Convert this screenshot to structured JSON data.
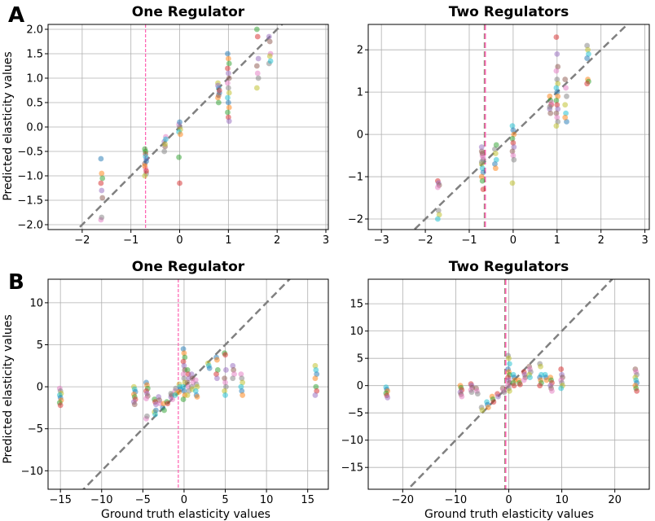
{
  "figure": {
    "panel_letters": [
      "A",
      "B"
    ],
    "ylabel": "Predicted elasticity values",
    "xlabel": "Ground truth elasticity values"
  },
  "colors": {
    "diagonal": "#808080",
    "vline_pink": "#ff5fb0",
    "vline_green": "#3cb44b",
    "points": [
      "#1f77b4",
      "#ff7f0e",
      "#2ca02c",
      "#d62728",
      "#9467bd",
      "#8c564b",
      "#e377c2",
      "#7f7f7f",
      "#bcbd22",
      "#17becf"
    ]
  },
  "chart_data": [
    {
      "id": "A1",
      "type": "scatter",
      "title": "One Regulator",
      "xlim": [
        -2.7,
        3.05
      ],
      "ylim": [
        -2.1,
        2.1
      ],
      "xticks": [
        -2,
        -1,
        0,
        1,
        2,
        3
      ],
      "yticks": [
        -2.0,
        -1.5,
        -1.0,
        -0.5,
        0.0,
        0.5,
        1.0,
        1.5,
        2.0
      ],
      "ytick_decimals": 1,
      "diagonal": true,
      "vlines": [
        {
          "x": -0.7,
          "color": "pink"
        }
      ],
      "x_groups": [
        {
          "x": -1.6,
          "y": [
            -0.65,
            -0.95,
            -1.05,
            -1.15,
            -1.3,
            -1.45,
            -1.9,
            -1.85
          ]
        },
        {
          "x": -0.7,
          "y": [
            -0.45,
            -0.55,
            -0.65,
            -0.75,
            -0.85,
            -0.95,
            -1.0,
            -0.6,
            -0.7,
            -0.8,
            -0.5,
            -0.9
          ]
        },
        {
          "x": -0.3,
          "y": [
            -0.3,
            -0.4,
            -0.2,
            -0.5,
            -0.35,
            -0.25
          ]
        },
        {
          "x": 0.0,
          "y": [
            0.05,
            0.0,
            -0.05,
            -0.1,
            0.1,
            -0.15,
            -0.62,
            -1.15
          ]
        },
        {
          "x": 0.8,
          "y": [
            0.9,
            0.8,
            0.7,
            0.6,
            0.5,
            0.75,
            0.85,
            0.65
          ]
        },
        {
          "x": 1.0,
          "y": [
            1.5,
            1.4,
            1.3,
            1.2,
            1.1,
            1.0,
            0.9,
            0.8,
            0.7,
            0.6,
            0.5,
            0.4,
            0.3,
            0.2,
            0.12
          ]
        },
        {
          "x": 1.6,
          "y": [
            2.0,
            1.85,
            1.4,
            1.25,
            1.1,
            1.0,
            0.8
          ]
        },
        {
          "x": 1.85,
          "y": [
            1.85,
            1.75,
            1.5,
            1.3,
            1.45,
            1.35
          ]
        }
      ]
    },
    {
      "id": "A2",
      "type": "scatter",
      "title": "Two Regulators",
      "xlim": [
        -3.3,
        3.1
      ],
      "ylim": [
        -2.25,
        2.6
      ],
      "xticks": [
        -3,
        -2,
        -1,
        0,
        1,
        2,
        3
      ],
      "yticks": [
        -2,
        -1,
        0,
        1,
        2
      ],
      "ytick_decimals": 0,
      "diagonal": true,
      "vlines": [
        {
          "x": -0.65,
          "color": "green",
          "dash": "dashed"
        },
        {
          "x": -0.65,
          "color": "pink",
          "dash": "dashed"
        }
      ],
      "x_groups": [
        {
          "x": -1.7,
          "y": [
            -1.1,
            -1.15,
            -1.2,
            -1.25,
            -1.8,
            -1.9,
            -2.0
          ]
        },
        {
          "x": -0.7,
          "y": [
            -0.4,
            -0.5,
            -0.6,
            -0.7,
            -0.8,
            -0.9,
            -1.0,
            -1.1,
            -1.3,
            -0.3,
            -0.45,
            -0.55,
            -0.65
          ]
        },
        {
          "x": -0.4,
          "y": [
            -0.35,
            -0.45,
            -0.6,
            -0.7,
            -0.8,
            -0.25
          ]
        },
        {
          "x": 0.0,
          "y": [
            0.2,
            0.1,
            0.0,
            -0.1,
            -0.2,
            -0.3,
            -0.4,
            -0.5,
            -0.6,
            -1.15
          ]
        },
        {
          "x": 0.85,
          "y": [
            0.9,
            0.8,
            0.7,
            0.6,
            0.5,
            0.75,
            0.65
          ]
        },
        {
          "x": 1.0,
          "y": [
            2.3,
            1.9,
            1.6,
            1.5,
            1.3,
            1.2,
            1.1,
            1.0,
            0.9,
            0.8,
            0.7,
            0.6,
            0.5,
            0.4,
            0.3,
            0.2
          ]
        },
        {
          "x": 1.2,
          "y": [
            1.3,
            1.1,
            0.9,
            0.7,
            0.5,
            0.3,
            0.4
          ]
        },
        {
          "x": 1.7,
          "y": [
            2.1,
            2.0,
            1.9,
            1.8,
            1.3,
            1.25,
            1.2
          ]
        }
      ]
    },
    {
      "id": "B1",
      "type": "scatter",
      "title": "One Regulator",
      "xlim": [
        -16.5,
        17.5
      ],
      "ylim": [
        -12.2,
        12.8
      ],
      "xticks": [
        -15,
        -10,
        -5,
        0,
        5,
        10,
        15
      ],
      "yticks": [
        -10,
        -5,
        0,
        5,
        10
      ],
      "ytick_decimals": 0,
      "diagonal": true,
      "vlines": [
        {
          "x": -0.7,
          "color": "pink"
        }
      ],
      "x_groups": [
        {
          "x": -15.0,
          "y": [
            -0.2,
            -0.5,
            -0.8,
            -1.0,
            -1.3,
            -1.6,
            -1.9,
            -2.2
          ]
        },
        {
          "x": -6.0,
          "y": [
            0.0,
            -0.3,
            -0.6,
            -0.9,
            -1.2,
            -1.5,
            -1.8,
            -2.1
          ]
        },
        {
          "x": -4.5,
          "y": [
            0.5,
            0.2,
            -0.2,
            -0.5,
            -0.8,
            -1.1,
            -1.4
          ]
        },
        {
          "x": -3.5,
          "y": [
            -1.5,
            -1.8,
            -2.1
          ]
        },
        {
          "x": -3.0,
          "y": [
            -1.2,
            -1.6,
            -2.0
          ]
        },
        {
          "x": -4.5,
          "y": [
            -3.8,
            -3.5
          ]
        },
        {
          "x": -3.5,
          "y": [
            -3.0,
            -3.3,
            -2.8
          ]
        },
        {
          "x": -2.5,
          "y": [
            -2.5,
            -2.0,
            -2.8
          ]
        },
        {
          "x": -2.0,
          "y": [
            -1.8,
            -2.0
          ]
        },
        {
          "x": -1.5,
          "y": [
            -1.2,
            -1.0,
            -1.5,
            -0.8
          ]
        },
        {
          "x": -1.0,
          "y": [
            -0.5,
            -0.2,
            -0.8,
            -1.0
          ]
        },
        {
          "x": -0.5,
          "y": [
            0.3,
            0.0,
            -0.3,
            -0.6
          ]
        },
        {
          "x": 0.0,
          "y": [
            4.5,
            4.0,
            3.5,
            3.0,
            2.5,
            2.0,
            1.5,
            1.0,
            0.5,
            0.0,
            -0.5,
            -1.0,
            -1.5
          ]
        },
        {
          "x": 0.5,
          "y": [
            2.0,
            1.5,
            1.0,
            0.5,
            0.0,
            -0.5,
            -1.0
          ]
        },
        {
          "x": 1.0,
          "y": [
            1.5,
            1.0,
            0.5,
            0.0,
            -0.3
          ]
        },
        {
          "x": 1.5,
          "y": [
            0.8,
            0.3,
            0.0,
            -0.5,
            -1.0,
            -1.2
          ]
        },
        {
          "x": 3.0,
          "y": [
            2.8,
            2.5,
            2.2
          ]
        },
        {
          "x": 4.0,
          "y": [
            3.5,
            3.2,
            2.0,
            1.5,
            1.0
          ]
        },
        {
          "x": 5.0,
          "y": [
            4.0,
            3.8,
            2.0,
            1.0,
            0.5,
            0.0,
            -0.5,
            -1.0
          ]
        },
        {
          "x": 6.0,
          "y": [
            2.5,
            2.0,
            1.5,
            1.0
          ]
        },
        {
          "x": 7.0,
          "y": [
            1.5,
            1.0,
            0.5,
            0.0,
            -0.5,
            -1.0
          ]
        },
        {
          "x": 16.0,
          "y": [
            2.5,
            2.0,
            1.5,
            1.0,
            0.0,
            -0.5,
            -1.0
          ]
        }
      ]
    },
    {
      "id": "B2",
      "type": "scatter",
      "title": "Two Regulators",
      "xlim": [
        -26.5,
        26.5
      ],
      "ylim": [
        -19.0,
        19.5
      ],
      "xticks": [
        -20,
        -10,
        0,
        10,
        20
      ],
      "yticks": [
        -15,
        -10,
        -5,
        0,
        5,
        10,
        15
      ],
      "ytick_decimals": 0,
      "diagonal": true,
      "vlines": [
        {
          "x": -0.7,
          "color": "green",
          "dash": "dashed"
        },
        {
          "x": -0.7,
          "color": "pink",
          "dash": "dashed"
        }
      ],
      "x_groups": [
        {
          "x": -23.0,
          "y": [
            -0.3,
            -0.7,
            -1.0,
            -1.4,
            -1.8,
            -2.2
          ]
        },
        {
          "x": -9.0,
          "y": [
            0.0,
            -0.4,
            -0.8,
            -1.2,
            -1.6,
            -2.0
          ]
        },
        {
          "x": -7.0,
          "y": [
            0.3,
            0.0,
            -0.4,
            -0.8,
            -1.2
          ]
        },
        {
          "x": -6.0,
          "y": [
            -0.5,
            -1.0,
            -1.5
          ]
        },
        {
          "x": -5.0,
          "y": [
            -4.0,
            -4.5
          ]
        },
        {
          "x": -4.0,
          "y": [
            -3.0,
            -3.5,
            -4.0
          ]
        },
        {
          "x": -3.0,
          "y": [
            -2.0,
            -2.5,
            -3.0
          ]
        },
        {
          "x": -2.0,
          "y": [
            -1.5,
            -2.0
          ]
        },
        {
          "x": -1.0,
          "y": [
            -0.5,
            -1.0,
            -1.2
          ]
        },
        {
          "x": 0.0,
          "y": [
            5.5,
            5.0,
            4.0,
            3.0,
            2.5,
            2.0,
            1.5,
            1.0,
            0.5,
            0.0,
            -0.5,
            -1.0
          ]
        },
        {
          "x": 1.0,
          "y": [
            2.0,
            1.5,
            1.0,
            0.5,
            0.0
          ]
        },
        {
          "x": 2.0,
          "y": [
            1.0,
            0.5,
            0.2
          ]
        },
        {
          "x": 3.0,
          "y": [
            2.5,
            2.0,
            1.5,
            1.0
          ]
        },
        {
          "x": 4.0,
          "y": [
            3.5,
            3.0,
            2.5,
            2.0,
            1.5
          ]
        },
        {
          "x": 6.0,
          "y": [
            4.0,
            3.5,
            2.0,
            1.5,
            1.0,
            0.5,
            0.0
          ]
        },
        {
          "x": 7.0,
          "y": [
            2.0,
            1.5,
            1.0
          ]
        },
        {
          "x": 8.0,
          "y": [
            1.5,
            1.0,
            0.5,
            0.0,
            -0.5,
            -1.0
          ]
        },
        {
          "x": 10.0,
          "y": [
            3.0,
            2.0,
            1.5,
            1.0,
            0.5,
            0.0,
            -0.5
          ]
        },
        {
          "x": 24.0,
          "y": [
            3.0,
            2.5,
            2.0,
            1.5,
            1.0,
            0.5,
            0.0,
            -0.5,
            -1.0
          ]
        }
      ]
    }
  ]
}
